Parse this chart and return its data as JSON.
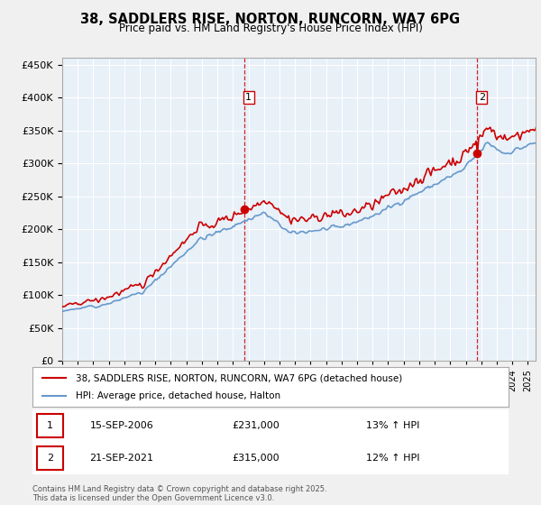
{
  "title": "38, SADDLERS RISE, NORTON, RUNCORN, WA7 6PG",
  "subtitle": "Price paid vs. HM Land Registry's House Price Index (HPI)",
  "legend_line1": "38, SADDLERS RISE, NORTON, RUNCORN, WA7 6PG (detached house)",
  "legend_line2": "HPI: Average price, detached house, Halton",
  "footnote": "Contains HM Land Registry data © Crown copyright and database right 2025.\nThis data is licensed under the Open Government Licence v3.0.",
  "sale1_date": "15-SEP-2006",
  "sale1_price": 231000,
  "sale1_hpi": "13% ↑ HPI",
  "sale2_date": "21-SEP-2021",
  "sale2_price": 315000,
  "sale2_hpi": "12% ↑ HPI",
  "sale1_label": "1",
  "sale2_label": "2",
  "sale1_year": 2006.71,
  "sale2_year": 2021.72,
  "red_color": "#cc0000",
  "blue_color": "#6699cc",
  "dashed_color": "#cc0000",
  "bg_color": "#ddeeff",
  "plot_bg": "#e8f0f8",
  "grid_color": "#ffffff",
  "ylim": [
    0,
    460000
  ],
  "xlim_start": 1995,
  "xlim_end": 2025.5
}
